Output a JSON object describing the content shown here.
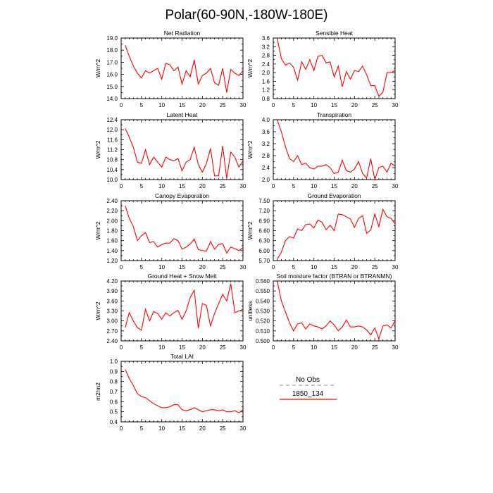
{
  "figure": {
    "title": "Polar(60-90N,-180W-180E)"
  },
  "legend": {
    "entries": [
      {
        "label": "No Obs",
        "color": "#9999e6",
        "dashed": true
      },
      {
        "label": "1850_134",
        "color": "#ff0000",
        "dashed": false
      }
    ]
  },
  "chart_data": [
    {
      "type": "line",
      "title": "Net Radiation",
      "ylabel": "W/m^2",
      "xlim": [
        0,
        30
      ],
      "ylim": [
        14.0,
        19.0
      ],
      "xticks": [
        0,
        5,
        10,
        15,
        20,
        25,
        30
      ],
      "yticks": [
        "14.0",
        "15.0",
        "16.0",
        "17.0",
        "18.0",
        "19.0"
      ],
      "series": [
        {
          "color": "#ff0000",
          "x": [
            1,
            2,
            3,
            4,
            5,
            6,
            7,
            8,
            9,
            10,
            11,
            12,
            13,
            14,
            15,
            16,
            17,
            18,
            19,
            20,
            21,
            22,
            23,
            24,
            25,
            26,
            27,
            28,
            29,
            30
          ],
          "y": [
            18.4,
            17.5,
            16.7,
            16.1,
            15.7,
            16.3,
            16.1,
            16.3,
            16.5,
            15.6,
            16.9,
            16.8,
            16.3,
            16.6,
            15.2,
            16.3,
            15.8,
            17.2,
            15.2,
            15.9,
            16.1,
            16.5,
            15.3,
            15.1,
            16.5,
            14.5,
            16.4,
            16.1,
            15.9,
            16.3
          ]
        }
      ]
    },
    {
      "type": "line",
      "title": "Sensible Heat",
      "ylabel": "W/m^2",
      "xlim": [
        0,
        30
      ],
      "ylim": [
        0.8,
        3.6
      ],
      "xticks": [
        0,
        5,
        10,
        15,
        20,
        25,
        30
      ],
      "yticks": [
        "0.8",
        "1.2",
        "1.6",
        "2.0",
        "2.4",
        "2.8",
        "3.2",
        "3.6"
      ],
      "series": [
        {
          "color": "#ff0000",
          "x": [
            1,
            2,
            3,
            4,
            5,
            6,
            7,
            8,
            9,
            10,
            11,
            12,
            13,
            14,
            15,
            16,
            17,
            18,
            19,
            20,
            21,
            22,
            23,
            24,
            25,
            26,
            27,
            28,
            29,
            30
          ],
          "y": [
            3.55,
            2.65,
            2.35,
            2.45,
            2.25,
            1.65,
            2.5,
            2.15,
            2.6,
            2.1,
            2.75,
            2.8,
            2.45,
            2.5,
            1.8,
            2.3,
            1.35,
            2.05,
            1.7,
            2.1,
            2.05,
            2.3,
            1.9,
            1.4,
            1.4,
            0.9,
            1.1,
            2.0,
            2.0,
            2.1
          ]
        }
      ]
    },
    {
      "type": "line",
      "title": "Latent Heat",
      "ylabel": "W/m^2",
      "xlim": [
        0,
        30
      ],
      "ylim": [
        10.0,
        12.4
      ],
      "xticks": [
        0,
        5,
        10,
        15,
        20,
        25,
        30
      ],
      "yticks": [
        "10.0",
        "10.4",
        "10.8",
        "11.2",
        "11.6",
        "12.0",
        "12.4"
      ],
      "series": [
        {
          "color": "#ff0000",
          "x": [
            1,
            2,
            3,
            4,
            5,
            6,
            7,
            8,
            9,
            10,
            11,
            12,
            13,
            14,
            15,
            16,
            17,
            18,
            19,
            20,
            21,
            22,
            23,
            24,
            25,
            26,
            27,
            28,
            29,
            30
          ],
          "y": [
            12.05,
            11.7,
            11.3,
            10.7,
            10.65,
            11.2,
            10.6,
            10.9,
            10.7,
            10.5,
            10.9,
            10.8,
            10.75,
            10.85,
            10.35,
            10.7,
            10.8,
            11.3,
            10.6,
            10.3,
            10.65,
            11.25,
            10.15,
            10.15,
            11.35,
            10.05,
            11.1,
            10.9,
            10.5,
            10.75
          ]
        }
      ]
    },
    {
      "type": "line",
      "title": "Transpiration",
      "ylabel": "W/m^2",
      "xlim": [
        0,
        30
      ],
      "ylim": [
        2.0,
        4.0
      ],
      "xticks": [
        0,
        5,
        10,
        15,
        20,
        25,
        30
      ],
      "yticks": [
        "2.0",
        "2.4",
        "2.8",
        "3.2",
        "3.6",
        "4.0"
      ],
      "series": [
        {
          "color": "#ff0000",
          "x": [
            1,
            2,
            3,
            4,
            5,
            6,
            7,
            8,
            9,
            10,
            11,
            12,
            13,
            14,
            15,
            16,
            17,
            18,
            19,
            20,
            21,
            22,
            23,
            24,
            25,
            26,
            27,
            28,
            29,
            30
          ],
          "y": [
            3.98,
            3.6,
            3.1,
            2.7,
            2.6,
            2.8,
            2.5,
            2.55,
            2.4,
            2.35,
            2.45,
            2.45,
            2.5,
            2.4,
            2.2,
            2.25,
            2.65,
            2.3,
            2.25,
            2.35,
            2.6,
            2.2,
            2.05,
            2.7,
            2.0,
            2.4,
            2.45,
            2.25,
            2.55,
            2.45
          ]
        }
      ]
    },
    {
      "type": "line",
      "title": "Canopy Evaporation",
      "ylabel": "W/m^2",
      "xlim": [
        0,
        30
      ],
      "ylim": [
        1.2,
        2.4
      ],
      "xticks": [
        0,
        5,
        10,
        15,
        20,
        25,
        30
      ],
      "yticks": [
        "1.20",
        "1.40",
        "1.60",
        "1.80",
        "2.00",
        "2.20",
        "2.40"
      ],
      "series": [
        {
          "color": "#ff0000",
          "x": [
            1,
            2,
            3,
            4,
            5,
            6,
            7,
            8,
            9,
            10,
            11,
            12,
            13,
            14,
            15,
            16,
            17,
            18,
            19,
            20,
            21,
            22,
            23,
            24,
            25,
            26,
            27,
            28,
            29,
            30
          ],
          "y": [
            2.3,
            2.05,
            1.88,
            1.6,
            1.7,
            1.76,
            1.56,
            1.58,
            1.47,
            1.52,
            1.55,
            1.55,
            1.64,
            1.6,
            1.43,
            1.47,
            1.53,
            1.63,
            1.42,
            1.4,
            1.39,
            1.58,
            1.43,
            1.52,
            1.54,
            1.35,
            1.47,
            1.44,
            1.4,
            1.46
          ]
        }
      ]
    },
    {
      "type": "line",
      "title": "Ground Evaporation",
      "ylabel": "W/m^2",
      "xlim": [
        0,
        30
      ],
      "ylim": [
        5.7,
        7.5
      ],
      "xticks": [
        0,
        5,
        10,
        15,
        20,
        25,
        30
      ],
      "yticks": [
        "5.70",
        "6.00",
        "6.30",
        "6.60",
        "6.90",
        "7.20",
        "7.50"
      ],
      "series": [
        {
          "color": "#ff0000",
          "x": [
            1,
            2,
            3,
            4,
            5,
            6,
            7,
            8,
            9,
            10,
            11,
            12,
            13,
            14,
            15,
            16,
            17,
            18,
            19,
            20,
            21,
            22,
            23,
            24,
            25,
            26,
            27,
            28,
            29,
            30
          ],
          "y": [
            5.75,
            5.95,
            6.3,
            6.42,
            6.38,
            6.65,
            6.6,
            6.78,
            6.8,
            6.68,
            6.92,
            6.85,
            6.63,
            6.76,
            6.6,
            7.1,
            7.08,
            7.02,
            6.95,
            6.7,
            6.97,
            7.05,
            6.52,
            6.62,
            7.1,
            6.72,
            7.24,
            7.02,
            6.97,
            6.8
          ]
        }
      ]
    },
    {
      "type": "line",
      "title": "Ground Heat + Snow Melt",
      "ylabel": "W/m^2",
      "xlim": [
        0,
        30
      ],
      "ylim": [
        2.4,
        4.2
      ],
      "xticks": [
        0,
        5,
        10,
        15,
        20,
        25,
        30
      ],
      "yticks": [
        "2.40",
        "2.70",
        "3.00",
        "3.30",
        "3.60",
        "3.90",
        "4.20"
      ],
      "series": [
        {
          "color": "#ff0000",
          "x": [
            1,
            2,
            3,
            4,
            5,
            6,
            7,
            8,
            9,
            10,
            11,
            12,
            13,
            14,
            15,
            16,
            17,
            18,
            19,
            20,
            21,
            22,
            23,
            24,
            25,
            26,
            27,
            28,
            29,
            30
          ],
          "y": [
            2.8,
            3.25,
            3.0,
            2.8,
            2.72,
            3.35,
            3.0,
            3.28,
            3.22,
            3.05,
            3.25,
            3.15,
            3.25,
            3.32,
            3.05,
            3.3,
            3.7,
            3.92,
            2.78,
            3.52,
            3.47,
            2.85,
            3.22,
            3.52,
            3.8,
            3.6,
            4.12,
            3.25,
            3.3,
            3.35
          ]
        }
      ]
    },
    {
      "type": "line",
      "title": "Soil moisture factor (BTRAN or BTRANMN)",
      "ylabel": "unitless",
      "xlim": [
        0,
        30
      ],
      "ylim": [
        0.5,
        0.56
      ],
      "xticks": [
        0,
        5,
        10,
        15,
        20,
        25,
        30
      ],
      "yticks": [
        "0.500",
        "0.510",
        "0.520",
        "0.530",
        "0.540",
        "0.550",
        "0.560"
      ],
      "series": [
        {
          "color": "#ff0000",
          "x": [
            1,
            2,
            3,
            4,
            5,
            6,
            7,
            8,
            9,
            10,
            11,
            12,
            13,
            14,
            15,
            16,
            17,
            18,
            19,
            20,
            21,
            22,
            23,
            24,
            25,
            26,
            27,
            28,
            29,
            30
          ],
          "y": [
            0.559,
            0.54,
            0.529,
            0.518,
            0.51,
            0.517,
            0.518,
            0.512,
            0.517,
            0.515,
            0.514,
            0.512,
            0.515,
            0.52,
            0.516,
            0.51,
            0.514,
            0.521,
            0.514,
            0.514,
            0.515,
            0.514,
            0.511,
            0.506,
            0.513,
            0.502,
            0.515,
            0.516,
            0.513,
            0.52
          ]
        }
      ]
    },
    {
      "type": "line",
      "title": "Total LAI",
      "ylabel": "m2/m2",
      "xlim": [
        0,
        30
      ],
      "ylim": [
        0.4,
        1.0
      ],
      "xticks": [
        0,
        5,
        10,
        15,
        20,
        25,
        30
      ],
      "yticks": [
        "0.4",
        "0.5",
        "0.6",
        "0.7",
        "0.8",
        "0.9",
        "1.0"
      ],
      "series": [
        {
          "color": "#ff0000",
          "x": [
            1,
            2,
            3,
            4,
            5,
            6,
            7,
            8,
            9,
            10,
            11,
            12,
            13,
            14,
            15,
            16,
            17,
            18,
            19,
            20,
            21,
            22,
            23,
            24,
            25,
            26,
            27,
            28,
            29,
            30
          ],
          "y": [
            0.92,
            0.83,
            0.76,
            0.68,
            0.65,
            0.64,
            0.61,
            0.58,
            0.56,
            0.54,
            0.54,
            0.55,
            0.57,
            0.57,
            0.52,
            0.51,
            0.52,
            0.54,
            0.52,
            0.5,
            0.51,
            0.52,
            0.52,
            0.51,
            0.52,
            0.5,
            0.5,
            0.51,
            0.49,
            0.52
          ]
        }
      ]
    }
  ]
}
